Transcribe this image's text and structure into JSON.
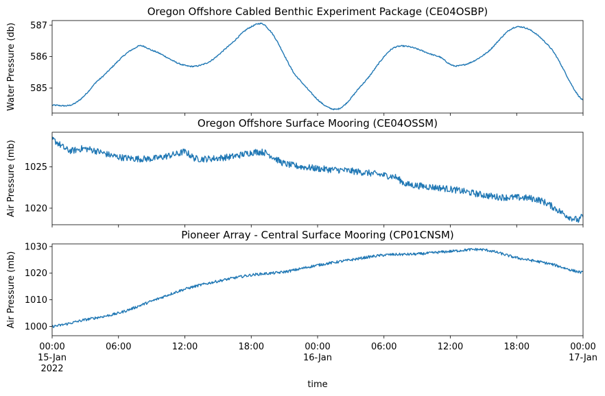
{
  "figure": {
    "xlabel": "time",
    "x_ticks": [
      {
        "hour": 0,
        "lines": [
          "00:00",
          "15-Jan",
          "2022"
        ]
      },
      {
        "hour": 6,
        "lines": [
          "06:00"
        ]
      },
      {
        "hour": 12,
        "lines": [
          "12:00"
        ]
      },
      {
        "hour": 18,
        "lines": [
          "18:00"
        ]
      },
      {
        "hour": 24,
        "lines": [
          "00:00",
          "16-Jan"
        ]
      },
      {
        "hour": 30,
        "lines": [
          "06:00"
        ]
      },
      {
        "hour": 36,
        "lines": [
          "12:00"
        ]
      },
      {
        "hour": 42,
        "lines": [
          "18:00"
        ]
      },
      {
        "hour": 48,
        "lines": [
          "00:00",
          "17-Jan"
        ]
      }
    ],
    "line_color": "#1f77b4"
  },
  "chart_data": [
    {
      "type": "line",
      "title": "Oregon Offshore Cabled Benthic Experiment Package (CE04OSBP)",
      "ylabel": "Water Pressure (db)",
      "xlim": [
        "2022-01-15 00:00",
        "2022-01-17 00:00"
      ],
      "ylim": [
        584.2,
        587.15
      ],
      "yticks": [
        585,
        586,
        587
      ],
      "noise": 0.02,
      "x_hours": [
        0,
        2,
        4,
        7.5,
        9,
        12,
        14,
        16,
        18,
        19.5,
        22,
        25.5,
        28,
        31,
        35,
        36.5,
        39,
        42,
        45,
        48
      ],
      "values": [
        584.45,
        584.5,
        585.2,
        586.27,
        586.2,
        585.72,
        585.8,
        586.35,
        586.95,
        586.9,
        585.4,
        584.32,
        585.1,
        586.3,
        586.0,
        585.7,
        586.05,
        586.95,
        586.3,
        584.6
      ]
    },
    {
      "type": "line",
      "title": "Oregon Offshore Surface Mooring (CE04OSSM)",
      "ylabel": "Air Pressure (mb)",
      "xlim": [
        "2022-01-15 00:00",
        "2022-01-17 00:00"
      ],
      "ylim": [
        1018.0,
        1029.2
      ],
      "yticks": [
        1020,
        1025
      ],
      "noise": 0.4,
      "x_hours": [
        0,
        1.5,
        3,
        6,
        9,
        11.5,
        12,
        13,
        16,
        19,
        21,
        24,
        27,
        31,
        32,
        36,
        40,
        44,
        47.5,
        48
      ],
      "values": [
        1028.3,
        1027.0,
        1027.2,
        1026.2,
        1026.0,
        1026.6,
        1026.8,
        1026.0,
        1026.2,
        1026.8,
        1025.4,
        1024.8,
        1024.5,
        1023.8,
        1022.9,
        1022.3,
        1021.4,
        1021.0,
        1018.6,
        1019.1
      ]
    },
    {
      "type": "line",
      "title": "Pioneer Array - Central Surface Mooring (CP01CNSM)",
      "ylabel": "Air Pressure (mb)",
      "xlim": [
        "2022-01-15 00:00",
        "2022-01-17 00:00"
      ],
      "ylim": [
        996.5,
        1031.0
      ],
      "yticks": [
        1000,
        1010,
        1020,
        1030
      ],
      "noise": 0.5,
      "x_hours": [
        0,
        3,
        6,
        9,
        12,
        15,
        18,
        21,
        24,
        27,
        30,
        33,
        36,
        39,
        42,
        45,
        48
      ],
      "values": [
        1000.0,
        1002.5,
        1005.0,
        1009.5,
        1014.0,
        1017.0,
        1019.3,
        1020.5,
        1023.0,
        1025.0,
        1026.8,
        1027.2,
        1028.2,
        1028.8,
        1025.8,
        1023.5,
        1020.2
      ]
    }
  ]
}
